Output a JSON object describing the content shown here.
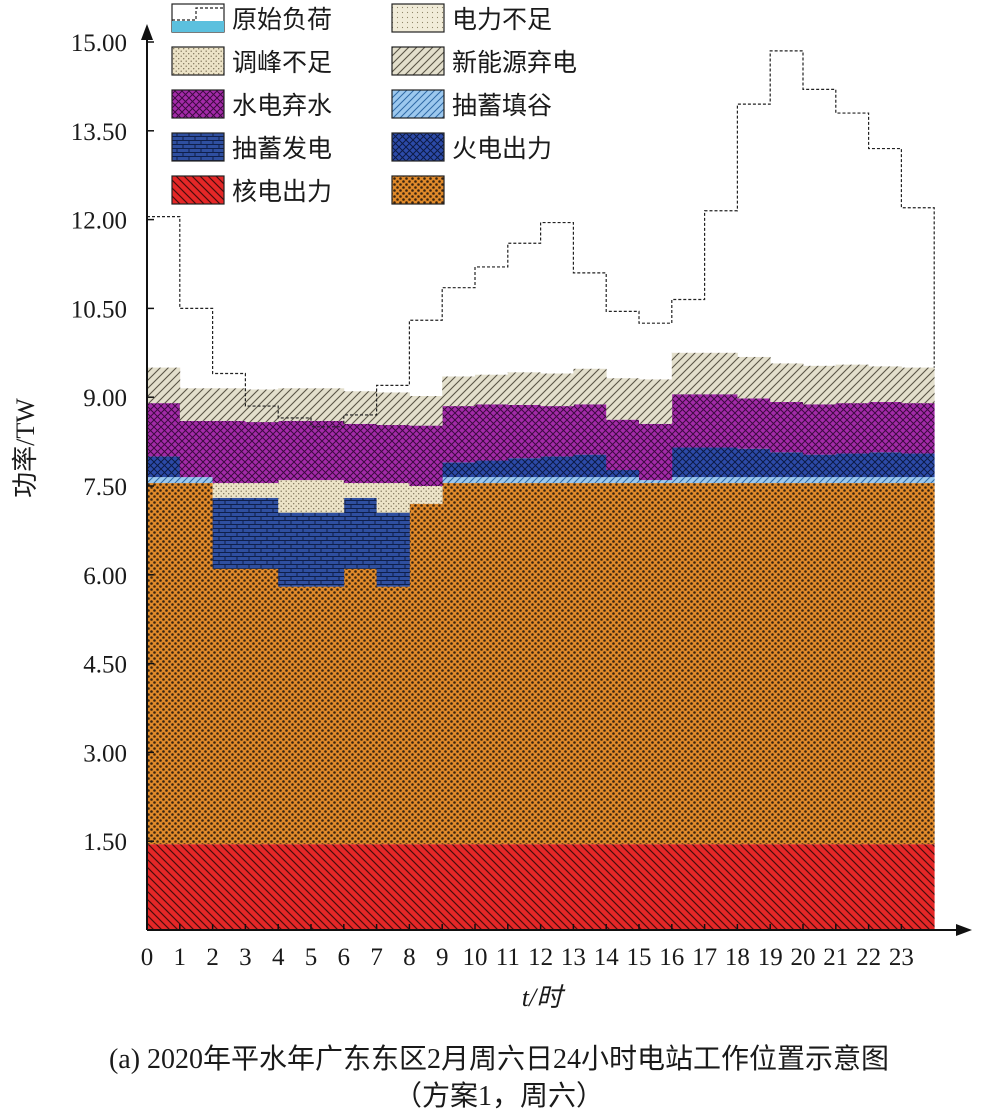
{
  "chart_data": {
    "type": "area",
    "xlabel": "t/时",
    "ylabel": "功率/TW",
    "ylim": [
      0,
      15
    ],
    "yticks": [
      "1.50",
      "3.00",
      "4.50",
      "6.00",
      "7.50",
      "9.00",
      "10.50",
      "12.00",
      "13.50",
      "15.00"
    ],
    "xticks": [
      "0",
      "1",
      "2",
      "3",
      "4",
      "5",
      "6",
      "7",
      "8",
      "9",
      "10",
      "11",
      "12",
      "13",
      "14",
      "15",
      "16",
      "17",
      "18",
      "19",
      "20",
      "21",
      "22",
      "23"
    ],
    "x": [
      0,
      1,
      2,
      3,
      4,
      5,
      6,
      7,
      8,
      9,
      10,
      11,
      12,
      13,
      14,
      15,
      16,
      17,
      18,
      19,
      20,
      21,
      22,
      23
    ],
    "grid": false,
    "legend_position": "top-left",
    "legend": [
      {
        "name": "原始负荷",
        "color": "#5bc0de"
      },
      {
        "name": "电力不足",
        "color": "#e9e1c5"
      },
      {
        "name": "调峰不足",
        "color": "#ece3c7"
      },
      {
        "name": "新能源弃电",
        "color": "#ddd8c4"
      },
      {
        "name": "水电弃水",
        "color": "#a32aa8"
      },
      {
        "name": "抽蓄填谷",
        "color": "#7fb6e6"
      },
      {
        "name": "抽蓄发电",
        "color": "#2f4fa0"
      },
      {
        "name": "火电出力",
        "color": "#2c4aa8"
      },
      {
        "name": "核电出力",
        "color": "#e52727"
      },
      {
        "name": "",
        "color": "#e08a2a"
      }
    ],
    "series": [
      {
        "name": "原始负荷",
        "values": [
          12.05,
          10.5,
          9.4,
          8.85,
          8.65,
          8.5,
          8.7,
          9.2,
          10.3,
          10.85,
          11.2,
          11.6,
          11.95,
          11.1,
          10.45,
          10.25,
          10.65,
          12.15,
          13.95,
          14.85,
          14.2,
          13.8,
          13.2,
          12.2
        ]
      },
      {
        "name": "核电出力",
        "values": [
          1.45,
          1.45,
          1.45,
          1.45,
          1.45,
          1.45,
          1.45,
          1.45,
          1.45,
          1.45,
          1.45,
          1.45,
          1.45,
          1.45,
          1.45,
          1.45,
          1.45,
          1.45,
          1.45,
          1.45,
          1.45,
          1.45,
          1.45,
          1.45
        ]
      },
      {
        "name": "",
        "values": [
          6.1,
          6.1,
          4.65,
          4.65,
          4.35,
          4.35,
          4.65,
          4.35,
          5.75,
          6.1,
          6.1,
          6.1,
          6.1,
          6.1,
          6.1,
          6.1,
          6.1,
          6.1,
          6.1,
          6.1,
          6.1,
          6.1,
          6.1,
          6.1
        ]
      },
      {
        "name": "抽蓄发电",
        "values": [
          0,
          0,
          1.2,
          1.2,
          1.25,
          1.25,
          1.2,
          1.25,
          0,
          0,
          0,
          0,
          0,
          0,
          0,
          0,
          0,
          0,
          0,
          0,
          0,
          0,
          0,
          0
        ]
      },
      {
        "name": "抽蓄填谷",
        "values": [
          0.1,
          0.1,
          0,
          0,
          0,
          0,
          0,
          0,
          0,
          0.1,
          0.1,
          0.1,
          0.1,
          0.1,
          0.1,
          0.05,
          0.1,
          0.1,
          0.1,
          0.1,
          0.1,
          0.1,
          0.1,
          0.1
        ]
      },
      {
        "name": "火电出力",
        "values": [
          0.35,
          0,
          0,
          0,
          0,
          0,
          0,
          0,
          0,
          0.25,
          0.28,
          0.32,
          0.35,
          0.38,
          0.12,
          0,
          0.5,
          0.5,
          0.48,
          0.42,
          0.38,
          0.4,
          0.42,
          0.4
        ]
      },
      {
        "name": "调峰不足",
        "values": [
          0,
          0,
          0.25,
          0.25,
          0.55,
          0.55,
          0.25,
          0.5,
          0.3,
          0,
          0,
          0,
          0,
          0,
          0,
          0,
          0,
          0,
          0,
          0,
          0,
          0,
          0,
          0
        ]
      },
      {
        "name": "水电弃水",
        "values": [
          0.9,
          0.95,
          1.05,
          1.03,
          1.0,
          1.0,
          1.0,
          0.98,
          1.02,
          0.95,
          0.95,
          0.9,
          0.85,
          0.85,
          0.85,
          0.95,
          0.9,
          0.9,
          0.85,
          0.85,
          0.85,
          0.85,
          0.85,
          0.85
        ]
      },
      {
        "name": "新能源弃电",
        "values": [
          0.6,
          0.55,
          0.55,
          0.55,
          0.55,
          0.55,
          0.55,
          0.55,
          0.5,
          0.5,
          0.5,
          0.55,
          0.55,
          0.6,
          0.7,
          0.75,
          0.7,
          0.7,
          0.7,
          0.65,
          0.65,
          0.65,
          0.6,
          0.6
        ]
      }
    ]
  },
  "caption": {
    "line1": "(a) 2020年平水年广东东区2月周六日24小时电站工作位置示意图",
    "line2": "（方案1，周六）"
  }
}
